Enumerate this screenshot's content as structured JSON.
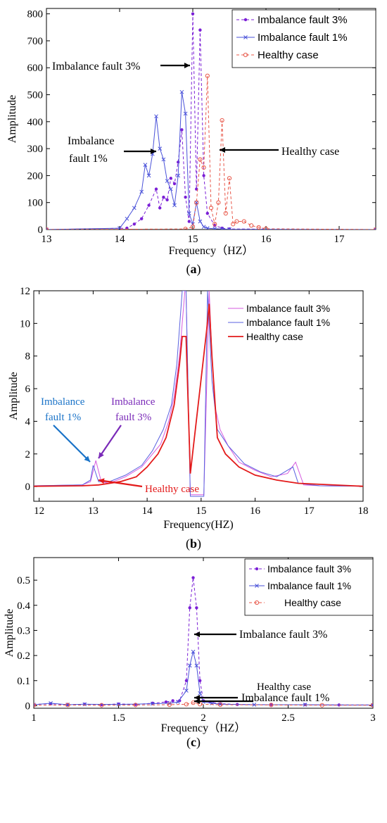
{
  "colors": {
    "fault3": "#7b1fd6",
    "fault1": "#4a52d9",
    "healthy": "#e8584a",
    "fault3_b": "#d65adf",
    "fault1_b": "#5a62e0",
    "healthy_b": "#e31a1a",
    "annot_blue": "#1a73c8",
    "annot_purple": "#7a2ab8",
    "annot_red": "#e31a1a",
    "black": "#000000"
  },
  "chart_data": [
    {
      "panel": "a",
      "caption": "a",
      "type": "line",
      "xlabel": "Frequency（HZ）",
      "ylabel": "Amplitude",
      "xlim": [
        13,
        17.5
      ],
      "ylim": [
        0,
        820
      ],
      "xticks": [
        13,
        14,
        15,
        16,
        17
      ],
      "yticks": [
        0,
        100,
        200,
        300,
        400,
        500,
        600,
        700,
        800
      ],
      "legend": "top-right",
      "series": [
        {
          "name": "Imbalance fault 3%",
          "style": "dashed",
          "marker": "dot",
          "x": [
            13.0,
            14.1,
            14.2,
            14.3,
            14.4,
            14.5,
            14.55,
            14.6,
            14.65,
            14.7,
            14.75,
            14.8,
            14.85,
            14.9,
            14.95,
            15.0,
            15.05,
            15.1,
            15.15,
            15.2,
            15.3,
            15.4,
            15.5,
            17.5
          ],
          "y": [
            0,
            5,
            20,
            40,
            90,
            150,
            80,
            120,
            110,
            190,
            170,
            250,
            370,
            120,
            30,
            800,
            150,
            740,
            200,
            60,
            15,
            5,
            2,
            0
          ]
        },
        {
          "name": "Imbalance fault 1%",
          "style": "solid",
          "marker": "x",
          "x": [
            13.0,
            14.0,
            14.1,
            14.2,
            14.3,
            14.35,
            14.4,
            14.45,
            14.5,
            14.55,
            14.6,
            14.65,
            14.7,
            14.75,
            14.8,
            14.85,
            14.9,
            14.95,
            15.0,
            15.05,
            15.1,
            15.15,
            15.2,
            15.3,
            15.4,
            15.5,
            17.5
          ],
          "y": [
            0,
            5,
            40,
            80,
            140,
            240,
            200,
            280,
            420,
            300,
            260,
            180,
            150,
            90,
            200,
            510,
            430,
            60,
            20,
            100,
            30,
            10,
            5,
            3,
            2,
            1,
            0
          ]
        },
        {
          "name": "Healthy case",
          "style": "dashed",
          "marker": "circle",
          "x": [
            13.0,
            14.9,
            15.0,
            15.05,
            15.1,
            15.15,
            15.2,
            15.25,
            15.3,
            15.35,
            15.4,
            15.45,
            15.5,
            15.55,
            15.6,
            15.7,
            15.8,
            15.9,
            16.0,
            17.5
          ],
          "y": [
            0,
            2,
            10,
            100,
            260,
            230,
            570,
            80,
            20,
            100,
            405,
            60,
            190,
            20,
            30,
            30,
            15,
            8,
            3,
            0
          ]
        }
      ],
      "annotations": [
        {
          "text": "Imbalance fault 3%",
          "x": 15.0,
          "y": 635
        },
        {
          "text": "Imbalance",
          "x": 14.6,
          "y": 305
        },
        {
          "text": "fault 1%",
          "x": 14.6,
          "y": 305
        },
        {
          "text": "Healthy case",
          "x": 15.35,
          "y": 305
        }
      ]
    },
    {
      "panel": "b",
      "caption": "b",
      "type": "line",
      "xlabel": "Frequency(HZ)",
      "ylabel": "Amplitude",
      "xlim": [
        11.9,
        18
      ],
      "ylim": [
        -0.9,
        12
      ],
      "xticks": [
        12,
        13,
        14,
        15,
        16,
        17,
        18
      ],
      "yticks": [
        0,
        2,
        4,
        6,
        8,
        10,
        12
      ],
      "legend": "top-right",
      "series": [
        {
          "name": "Imbalance fault 3%",
          "style": "solid",
          "x": [
            11.9,
            12.8,
            12.95,
            13.05,
            13.15,
            13.3,
            13.6,
            13.9,
            14.1,
            14.25,
            14.4,
            14.5,
            14.6,
            14.7,
            14.72,
            14.8,
            15.05,
            15.15,
            15.2,
            15.25,
            15.35,
            15.5,
            15.7,
            16.0,
            16.3,
            16.6,
            16.75,
            16.9,
            17.2,
            18.0
          ],
          "y": [
            0.05,
            0.1,
            0.3,
            1.6,
            0.3,
            0.2,
            0.6,
            1.2,
            2.0,
            2.6,
            4.0,
            5.5,
            8.0,
            12,
            12,
            -0.5,
            -0.5,
            12,
            8.0,
            5.0,
            3.5,
            2.5,
            1.5,
            1.0,
            0.6,
            0.8,
            1.5,
            0.1,
            0.05,
            0.02
          ]
        },
        {
          "name": "Imbalance fault 1%",
          "style": "solid",
          "x": [
            11.9,
            12.8,
            12.95,
            13.0,
            13.1,
            13.3,
            13.6,
            13.9,
            14.1,
            14.3,
            14.45,
            14.55,
            14.65,
            14.72,
            14.8,
            15.05,
            15.12,
            15.2,
            15.3,
            15.5,
            15.8,
            16.1,
            16.4,
            16.7,
            16.8,
            17.2,
            18.0
          ],
          "y": [
            0.05,
            0.1,
            0.4,
            1.3,
            0.3,
            0.3,
            0.7,
            1.3,
            2.2,
            3.5,
            5.0,
            7.5,
            12,
            12,
            -0.6,
            -0.6,
            12,
            6.5,
            3.5,
            2.5,
            1.4,
            0.9,
            0.6,
            1.2,
            0.2,
            0.05,
            0.02
          ]
        },
        {
          "name": "Healthy case",
          "style": "solid-thick",
          "x": [
            11.9,
            12.8,
            13.1,
            13.5,
            13.8,
            14.0,
            14.2,
            14.35,
            14.5,
            14.6,
            14.65,
            14.72,
            14.8,
            15.1,
            15.15,
            15.2,
            15.3,
            15.45,
            15.7,
            16.0,
            16.4,
            16.8,
            18.0
          ],
          "y": [
            0.02,
            0.05,
            0.1,
            0.3,
            0.6,
            1.2,
            2.0,
            3.0,
            5.0,
            7.5,
            9.2,
            9.2,
            0.8,
            9.5,
            11.2,
            8.0,
            3.0,
            2.0,
            1.2,
            0.7,
            0.4,
            0.2,
            0.02
          ]
        }
      ],
      "annotations": [
        {
          "text": "Imbalance",
          "color": "annot_blue",
          "x": 13.0,
          "y": 1.3
        },
        {
          "text": "fault 1%",
          "color": "annot_blue",
          "x": 13.0,
          "y": 1.3
        },
        {
          "text": "Imbalance",
          "color": "annot_purple",
          "x": 13.05,
          "y": 1.6
        },
        {
          "text": "fault 3%",
          "color": "annot_purple",
          "x": 13.05,
          "y": 1.6
        },
        {
          "text": "Healthy case",
          "color": "annot_red",
          "x": 13.1,
          "y": 0.1
        }
      ]
    },
    {
      "panel": "c",
      "caption": "c",
      "type": "line",
      "xlabel": "Frequency（HZ）",
      "ylabel": "Amplitude",
      "xlim": [
        1,
        3
      ],
      "ylim": [
        -0.01,
        0.59
      ],
      "xticks": [
        1,
        1.5,
        2,
        2.5,
        3
      ],
      "yticks": [
        0,
        0.1,
        0.2,
        0.3,
        0.4,
        0.5
      ],
      "legend": "top-right",
      "series": [
        {
          "name": "Imbalance fault 3%",
          "style": "dashed",
          "marker": "dot",
          "x": [
            1.0,
            1.1,
            1.2,
            1.3,
            1.4,
            1.5,
            1.6,
            1.7,
            1.78,
            1.82,
            1.86,
            1.9,
            1.92,
            1.94,
            1.96,
            1.98,
            2.0,
            2.04,
            2.1,
            2.2,
            2.4,
            2.6,
            2.8,
            3.0
          ],
          "y": [
            0.005,
            0.008,
            0.004,
            0.006,
            0.004,
            0.007,
            0.005,
            0.01,
            0.015,
            0.02,
            0.02,
            0.1,
            0.39,
            0.51,
            0.39,
            0.1,
            0.02,
            0.015,
            0.008,
            0.005,
            0.004,
            0.004,
            0.003,
            0.003
          ]
        },
        {
          "name": "Imbalance fault 1%",
          "style": "solid",
          "marker": "x",
          "x": [
            1.0,
            1.1,
            1.2,
            1.3,
            1.5,
            1.7,
            1.8,
            1.85,
            1.9,
            1.92,
            1.94,
            1.96,
            1.98,
            2.0,
            2.05,
            2.1,
            2.3,
            2.6,
            3.0
          ],
          "y": [
            0.004,
            0.01,
            0.004,
            0.006,
            0.005,
            0.008,
            0.01,
            0.015,
            0.06,
            0.16,
            0.215,
            0.16,
            0.05,
            0.015,
            0.01,
            0.006,
            0.004,
            0.004,
            0.003
          ]
        },
        {
          "name": "Healthy case",
          "style": "dashed",
          "marker": "circle",
          "x": [
            1.0,
            1.2,
            1.4,
            1.6,
            1.8,
            1.9,
            1.94,
            1.98,
            2.1,
            2.4,
            2.7,
            3.0
          ],
          "y": [
            0.002,
            0.003,
            0.002,
            0.003,
            0.004,
            0.006,
            0.012,
            0.006,
            0.004,
            0.003,
            0.002,
            0.002
          ]
        }
      ],
      "annotations": [
        {
          "text": "Imbalance fault 3%",
          "x": 1.95,
          "y": 0.37
        },
        {
          "text": "Imbalance fault 1%",
          "x": 1.95,
          "y": 0.17
        },
        {
          "text": "Healthy case",
          "x": 1.95,
          "y": 0.012
        }
      ]
    }
  ]
}
